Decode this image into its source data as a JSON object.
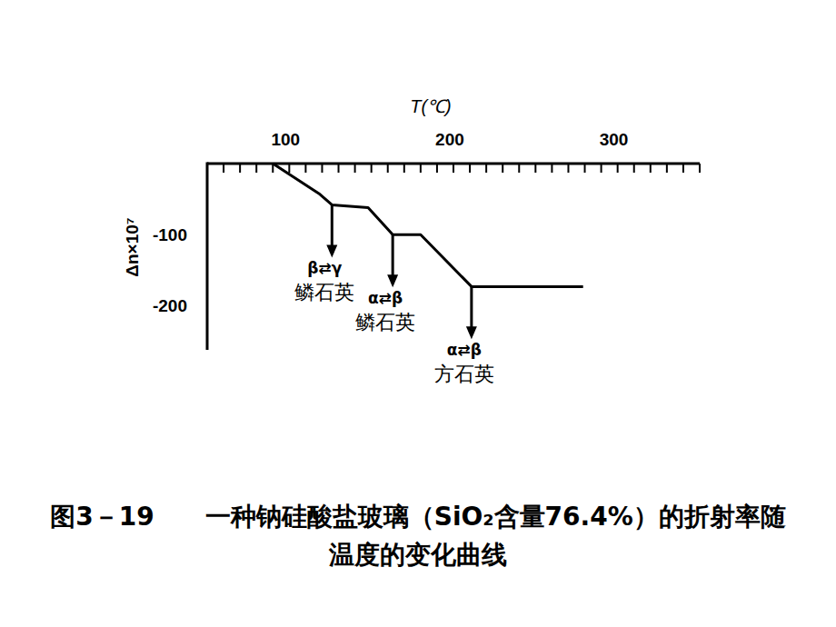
{
  "chart_data": {
    "type": "line",
    "title": "图3－19　　一种钠硅酸盐玻璃（SiO₂含量76.4%）的折射率随温度的变化曲线",
    "x_label": "T(℃)",
    "y_label": "Δn×10⁷",
    "x": [
      100,
      128,
      136,
      158,
      173,
      190,
      221,
      289
    ],
    "values": [
      0,
      -42,
      -58,
      -62,
      -100,
      -100,
      -173,
      -173
    ],
    "color": "#000000",
    "xlim": [
      60,
      360
    ],
    "ylim": [
      -262,
      0
    ],
    "xticks": [
      100,
      200,
      300
    ],
    "minor_xticks": [
      60,
      70,
      80,
      90,
      100,
      110,
      120,
      130,
      140,
      150,
      160,
      170,
      180,
      190,
      200,
      210,
      220,
      230,
      240,
      250,
      260,
      270,
      280,
      290,
      300,
      310,
      320,
      330,
      340,
      350,
      360
    ],
    "yticks": [
      -100,
      -200
    ],
    "grid": false,
    "annotations": [
      {
        "x": 136,
        "y": -58,
        "transition": "β⇄γ",
        "phase": "鳞石英"
      },
      {
        "x": 173,
        "y": -100,
        "transition": "α⇄β",
        "phase": "鳞石英"
      },
      {
        "x": 221,
        "y": -173,
        "transition": "α⇄β",
        "phase": "方石英"
      }
    ]
  }
}
